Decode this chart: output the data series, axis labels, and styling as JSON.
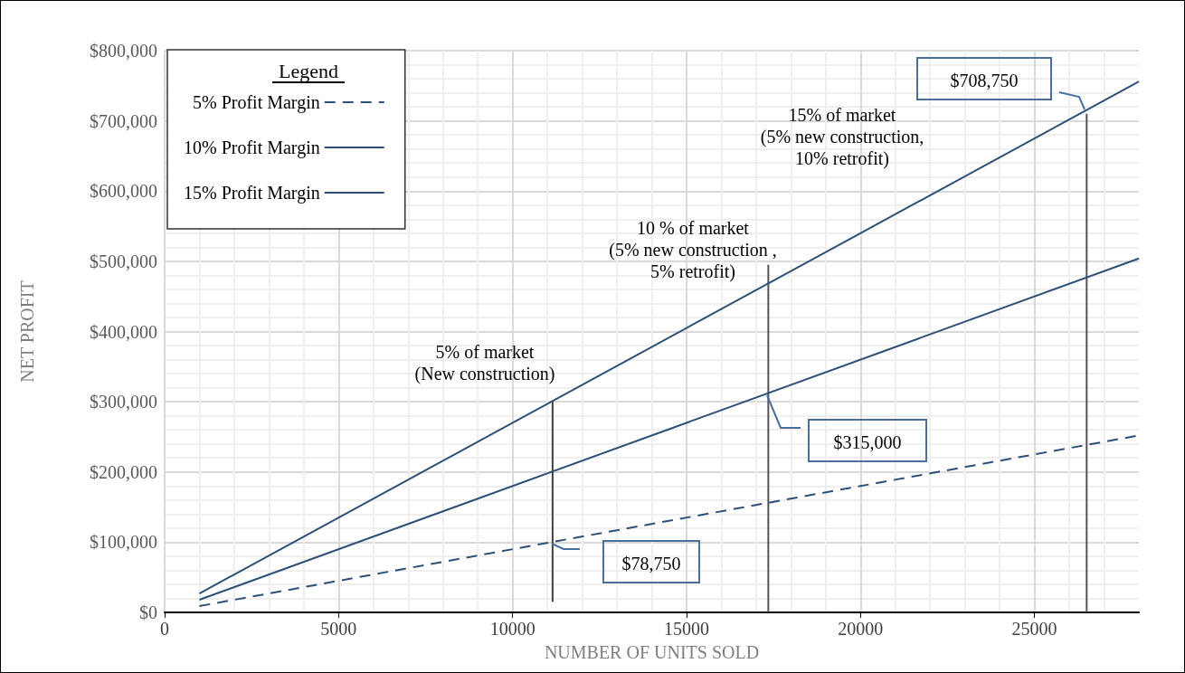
{
  "chart_data": {
    "type": "line",
    "xlabel": "NUMBER OF UNITS SOLD",
    "ylabel": "NET PROFIT",
    "legend_title": "Legend",
    "legend": "top left",
    "grid": true,
    "marker": "none",
    "xlim": [
      0,
      28000
    ],
    "xticks": [
      0,
      5000,
      10000,
      15000,
      20000,
      25000
    ],
    "ylim": [
      0,
      800000
    ],
    "yticks": [
      {
        "value": 0,
        "label": "$0"
      },
      {
        "value": 100000,
        "label": "$100,000"
      },
      {
        "value": 200000,
        "label": "$200,000"
      },
      {
        "value": 300000,
        "label": "$300,000"
      },
      {
        "value": 400000,
        "label": "$400,000"
      },
      {
        "value": 500000,
        "label": "$500,000"
      },
      {
        "value": 600000,
        "label": "$600,000"
      },
      {
        "value": 700000,
        "label": "$700,000"
      },
      {
        "value": 800000,
        "label": "$800,000"
      }
    ],
    "series": [
      {
        "name": "5% Profit Margin",
        "color": "#2e5077",
        "line_style": "dashed",
        "x": [
          1000,
          28000
        ],
        "values": [
          9000,
          252000
        ]
      },
      {
        "name": "10% Profit Margin",
        "color": "#2e5077",
        "line_style": "solid",
        "x": [
          1000,
          28000
        ],
        "values": [
          18000,
          504000
        ]
      },
      {
        "name": "15% Profit Margin",
        "color": "#2e5077",
        "line_style": "solid",
        "x": [
          1000,
          28000
        ],
        "values": [
          27000,
          756000
        ]
      },
      {
        "color": "#404040",
        "line_style": "solid",
        "x": [
          11150,
          11150
        ],
        "values": [
          15000,
          300000
        ]
      },
      {
        "color": "#555555",
        "line_style": "solid",
        "x": [
          17350,
          17350
        ],
        "values": [
          0,
          495000
        ]
      },
      {
        "color": "#555555",
        "line_style": "solid",
        "x": [
          26500,
          26500
        ],
        "values": [
          0,
          710000
        ]
      }
    ],
    "annotations": [
      "$78,750",
      "$315,000",
      "$708,750",
      "5% of market\n(New construction)",
      "10 % of market\n(5% new construction ,\n5% retrofit)",
      "15% of market\n(5% new construction,\n10% retrofit)"
    ]
  }
}
